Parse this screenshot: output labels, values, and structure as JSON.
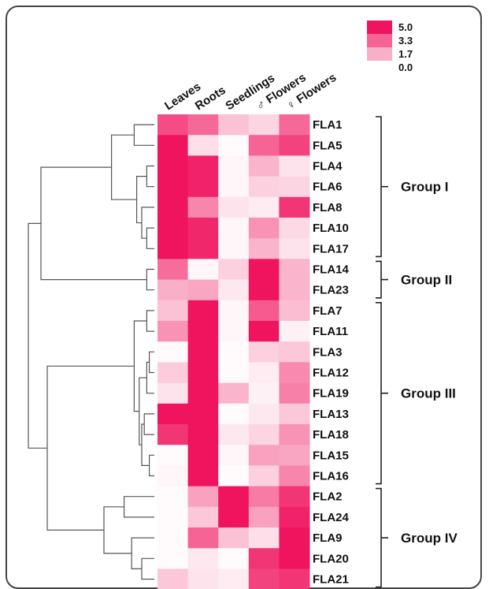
{
  "colors": {
    "max": "#f0145f",
    "min": "#ffffff",
    "border": "#444444",
    "dendrogram": "#555555"
  },
  "chart_data": {
    "type": "heatmap",
    "columns": [
      "Leaves",
      "Roots",
      "Seedlings",
      "♂ Flowers",
      "♀ Flowers"
    ],
    "rows": [
      "FLA1",
      "FLA5",
      "FLA4",
      "FLA6",
      "FLA8",
      "FLA10",
      "FLA17",
      "FLA14",
      "FLA23",
      "FLA7",
      "FLA11",
      "FLA3",
      "FLA12",
      "FLA19",
      "FLA13",
      "FLA18",
      "FLA15",
      "FLA16",
      "FLA2",
      "FLA24",
      "FLA9",
      "FLA20",
      "FLA21"
    ],
    "values": [
      [
        3.8,
        3.2,
        1.3,
        0.9,
        3.2
      ],
      [
        5.0,
        0.7,
        0.1,
        3.3,
        4.0
      ],
      [
        5.0,
        4.7,
        0.2,
        1.6,
        0.6
      ],
      [
        5.0,
        4.7,
        0.2,
        1.0,
        0.9
      ],
      [
        5.0,
        2.6,
        0.6,
        0.4,
        4.3
      ],
      [
        5.0,
        4.6,
        0.2,
        2.3,
        0.8
      ],
      [
        5.0,
        4.6,
        0.2,
        1.6,
        0.6
      ],
      [
        3.1,
        0.2,
        1.0,
        5.0,
        1.6
      ],
      [
        1.7,
        1.9,
        0.5,
        5.0,
        1.6
      ],
      [
        1.3,
        5.0,
        0.2,
        3.5,
        1.4
      ],
      [
        2.3,
        5.0,
        0.2,
        5.0,
        0.3
      ],
      [
        0.1,
        5.0,
        0.1,
        1.0,
        1.2
      ],
      [
        1.1,
        5.0,
        0.1,
        0.4,
        2.5
      ],
      [
        0.6,
        5.0,
        1.6,
        0.3,
        2.7
      ],
      [
        5.0,
        5.0,
        0.1,
        0.5,
        1.2
      ],
      [
        4.3,
        5.0,
        0.5,
        0.9,
        2.3
      ],
      [
        0.1,
        5.0,
        0.2,
        2.0,
        1.9
      ],
      [
        0.2,
        5.0,
        0.1,
        1.0,
        2.6
      ],
      [
        0.1,
        2.0,
        5.0,
        2.8,
        4.3
      ],
      [
        0.1,
        1.2,
        5.0,
        2.0,
        4.7
      ],
      [
        0.1,
        3.3,
        1.3,
        0.7,
        5.0
      ],
      [
        0.1,
        0.5,
        0.1,
        4.3,
        5.0
      ],
      [
        1.2,
        0.6,
        0.4,
        4.0,
        4.3
      ]
    ],
    "groups": [
      {
        "label": "Group I",
        "start": 0,
        "end": 6
      },
      {
        "label": "Group II",
        "start": 7,
        "end": 8
      },
      {
        "label": "Group III",
        "start": 9,
        "end": 17
      },
      {
        "label": "Group IV",
        "start": 18,
        "end": 22
      }
    ],
    "legend": {
      "labels": [
        "5.0",
        "3.3",
        "1.7",
        "0.0"
      ],
      "values": [
        5.0,
        3.3,
        1.7,
        0.0
      ]
    },
    "dendrogram": {
      "nodes": [
        {
          "rows": [
            0,
            1
          ],
          "h": 0.16
        },
        {
          "rows": [
            2,
            3
          ],
          "h": 0.06
        },
        {
          "rows": [
            5,
            6
          ],
          "h": 0.06
        },
        {
          "rows": [
            4,
            "n2"
          ],
          "h": 0.1
        },
        {
          "rows": [
            "n1",
            "n3"
          ],
          "h": 0.14
        },
        {
          "rows": [
            "n0",
            "n4"
          ],
          "h": 0.34
        },
        {
          "rows": [
            7,
            8
          ],
          "h": 0.06
        },
        {
          "rows": [
            "n5",
            "n6"
          ],
          "h": 0.9
        },
        {
          "rows": [
            9,
            10
          ],
          "h": 0.06
        },
        {
          "rows": [
            11,
            12
          ],
          "h": 0.04
        },
        {
          "rows": [
            "n9",
            13
          ],
          "h": 0.06
        },
        {
          "rows": [
            14,
            15
          ],
          "h": 0.08
        },
        {
          "rows": [
            16,
            17
          ],
          "h": 0.04
        },
        {
          "rows": [
            "n11",
            "n12"
          ],
          "h": 0.1
        },
        {
          "rows": [
            "n10",
            "n13"
          ],
          "h": 0.12
        },
        {
          "rows": [
            "n8",
            "n14"
          ],
          "h": 0.16
        },
        {
          "rows": [
            18,
            19
          ],
          "h": 0.24
        },
        {
          "rows": [
            21,
            22
          ],
          "h": 0.1
        },
        {
          "rows": [
            20,
            "n17"
          ],
          "h": 0.18
        },
        {
          "rows": [
            "n16",
            "n18"
          ],
          "h": 0.4
        },
        {
          "rows": [
            "n15",
            "n19"
          ],
          "h": 0.85
        },
        {
          "rows": [
            "n7",
            "n20"
          ],
          "h": 1.0
        }
      ]
    }
  }
}
